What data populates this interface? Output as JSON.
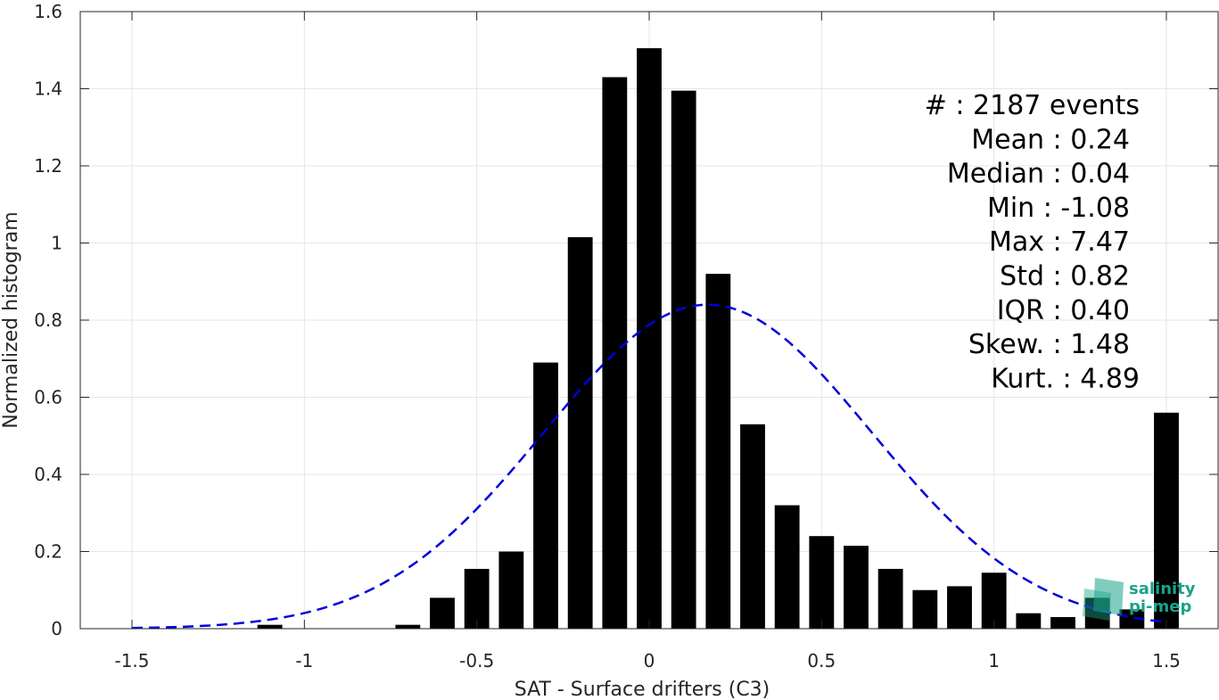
{
  "chart_data": {
    "type": "bar",
    "xlabel": "SAT - Surface drifters (C3)",
    "ylabel": "Normalized histogram",
    "xlim": [
      -1.65,
      1.65
    ],
    "ylim": [
      0,
      1.6
    ],
    "grid": true,
    "xticks": [
      -1.5,
      -1,
      -0.5,
      0,
      0.5,
      1,
      1.5
    ],
    "xtick_labels": [
      "-1.5",
      "-1",
      "-0.5",
      "0",
      "0.5",
      "1",
      "1.5"
    ],
    "yticks": [
      0,
      0.2,
      0.4,
      0.6,
      0.8,
      1,
      1.2,
      1.4,
      1.6
    ],
    "ytick_labels": [
      "0",
      "0.2",
      "0.4",
      "0.6",
      "0.8",
      "1",
      "1.2",
      "1.4",
      "1.6"
    ],
    "bin_width": 0.1,
    "x": [
      -1.5,
      -1.4,
      -1.3,
      -1.2,
      -1.1,
      -1.0,
      -0.9,
      -0.8,
      -0.7,
      -0.6,
      -0.5,
      -0.4,
      -0.3,
      -0.2,
      -0.1,
      0.0,
      0.1,
      0.2,
      0.3,
      0.4,
      0.5,
      0.6,
      0.7,
      0.8,
      0.9,
      1.0,
      1.1,
      1.2,
      1.3,
      1.4,
      1.5
    ],
    "values": [
      0,
      0,
      0,
      0,
      0.01,
      0,
      0,
      0,
      0.01,
      0.08,
      0.155,
      0.2,
      0.69,
      1.015,
      1.43,
      1.505,
      1.395,
      0.92,
      0.53,
      0.32,
      0.24,
      0.215,
      0.155,
      0.1,
      0.11,
      0.145,
      0.04,
      0.03,
      0.08,
      0.05,
      0.56
    ],
    "bar_color": "#000000",
    "fit_curve": {
      "style": "dashed",
      "color": "#0000dd",
      "mean": 0.17,
      "std": 0.475,
      "peak": 0.84,
      "x_range": [
        -1.5,
        1.5
      ]
    },
    "stats_box": [
      "#  : 2187 events",
      "Mean : 0.24",
      "Median : 0.04",
      "Min : -1.08",
      "Max : 7.47",
      "Std : 0.82",
      "IQR : 0.40",
      "Skew. : 1.48",
      "Kurt. : 4.89"
    ]
  },
  "logo": {
    "line1": "salinity",
    "line2": "pi-mep",
    "color": "#1aa38a"
  }
}
